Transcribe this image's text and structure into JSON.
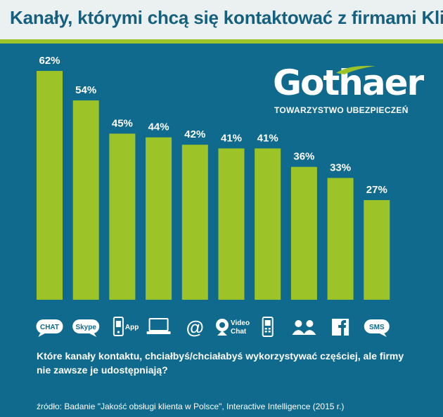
{
  "header": {
    "title": "Kanały, którymi chcą się kontaktować z firmami Klienci"
  },
  "logo": {
    "name": "Gothaer",
    "subtitle": "TOWARZYSTWO UBEZPIECZEŃ"
  },
  "colors": {
    "background": "#0f6a8d",
    "bar": "#9cc428",
    "header_bg": "#ebf0f0",
    "title": "#16607f"
  },
  "chart_data": {
    "type": "bar",
    "categories": [
      "CHAT",
      "Skype",
      "App",
      "",
      "@",
      "Video Chat",
      "",
      "",
      "",
      "SMS"
    ],
    "icons": [
      "chat-bubble-icon",
      "skype-bubble-icon",
      "mobile-app-icon",
      "laptop-icon",
      "at-sign-icon",
      "video-chat-icon",
      "mobile-phone-icon",
      "people-icon",
      "facebook-icon",
      "sms-bubble-icon"
    ],
    "values": [
      62,
      54,
      45,
      44,
      42,
      41,
      41,
      36,
      33,
      27
    ],
    "value_labels": [
      "62%",
      "54%",
      "45%",
      "44%",
      "42%",
      "41%",
      "41%",
      "36%",
      "33%",
      "27%"
    ],
    "ylim": [
      0,
      62
    ],
    "grid": false,
    "legend": "none"
  },
  "question": "Które kanały kontaktu, chciałbyś/chciałabyś wykorzystywać częściej, ale firmy nie zawsze je udostępniają?",
  "source": "źródło: Badanie \"Jakość obsługi klienta w Polsce\", Interactive Intelligence (2015 r.)"
}
